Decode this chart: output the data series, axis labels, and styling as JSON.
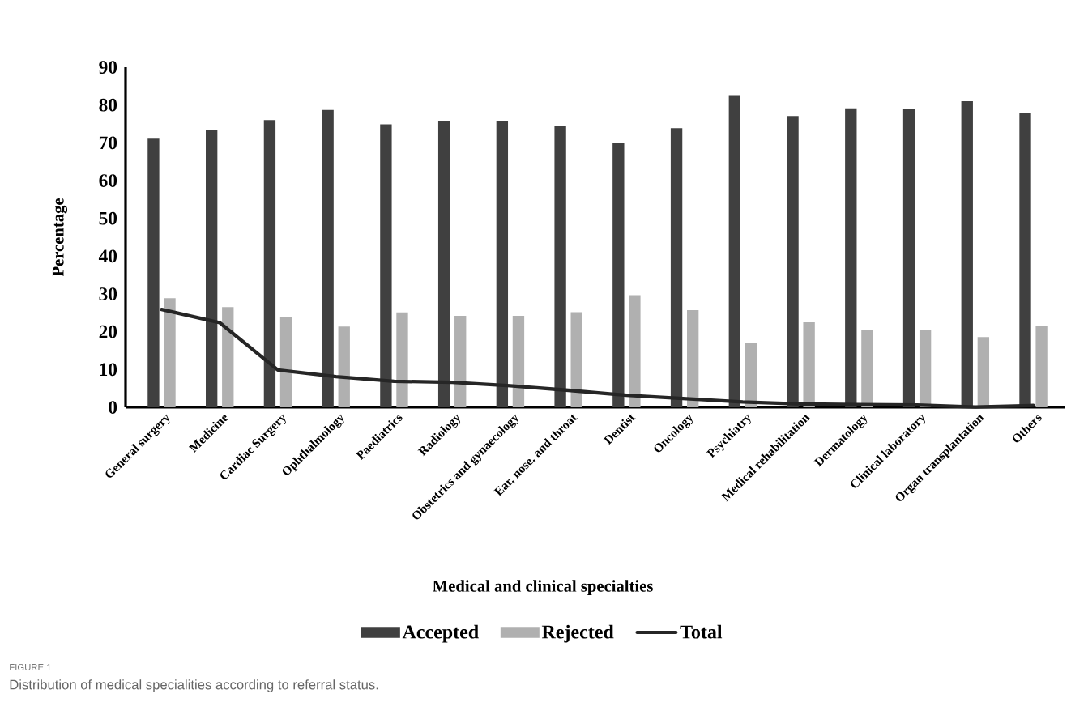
{
  "chart_data": {
    "type": "bar",
    "xlabel": "Medical and clinical specialties",
    "ylabel": "Percentage",
    "categories": [
      "General surgery",
      "Medicine",
      "Cardiac Surgery",
      "Ophthalmology",
      "Paediatrics",
      "Radiology",
      "Obstetrics and gynaecology",
      "Ear, nose, and throat",
      "Dentist",
      "Oncology",
      "Psychiatry",
      "Medical rehabilitation",
      "Dermatology",
      "Clinical laboratory",
      "Organ transplantation",
      "Others"
    ],
    "series": [
      {
        "name": "Accepted",
        "color": "#404040",
        "values": [
          71.1,
          73.5,
          76.0,
          78.7,
          74.9,
          75.8,
          75.8,
          74.4,
          70.0,
          73.9,
          82.6,
          77.1,
          79.1,
          79.0,
          81.0,
          77.9
        ]
      },
      {
        "name": "Rejected",
        "color": "#b0b0b0",
        "values": [
          28.9,
          26.5,
          24.0,
          21.4,
          25.1,
          24.2,
          24.2,
          25.2,
          29.7,
          25.7,
          17.0,
          22.5,
          20.5,
          20.5,
          18.6,
          21.6
        ]
      },
      {
        "name": "Total",
        "type": "line",
        "color": "#262626",
        "values": [
          25.9,
          22.4,
          9.9,
          8.1,
          6.9,
          6.6,
          5.7,
          4.5,
          3.2,
          2.3,
          1.4,
          0.9,
          0.7,
          0.6,
          0.1,
          0.5
        ]
      }
    ],
    "ylim": [
      0,
      90
    ],
    "yticks": [
      0,
      10,
      20,
      30,
      40,
      50,
      60,
      70,
      80,
      90
    ],
    "legend": "bottom",
    "annotations": [
      "FIGURE 1",
      "Distribution of medical specialities according to referral status."
    ]
  }
}
